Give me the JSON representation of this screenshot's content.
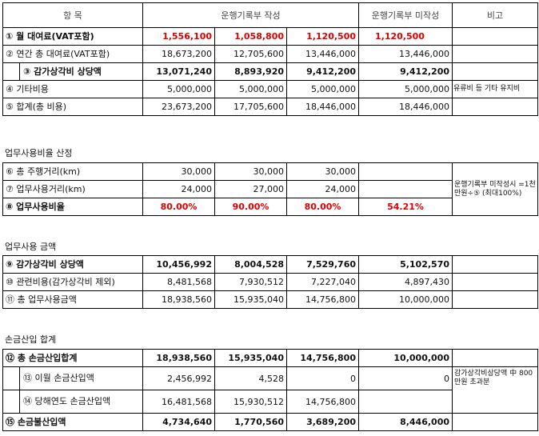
{
  "header": {
    "item": "항      목",
    "written": "운행기록부 작성",
    "not_written": "운행기록부 미작성",
    "remark": "비고"
  },
  "table1": [
    {
      "label": "① 월 대여료(VAT포함)",
      "vals": [
        "1,556,100",
        "1,058,800",
        "1,120,500",
        "1,120,500"
      ],
      "style": "red",
      "note": ""
    },
    {
      "label": "② 연간 총 대여료(VAT포함)",
      "vals": [
        "18,673,200",
        "12,705,600",
        "13,446,000",
        "13,446,000"
      ],
      "style": "",
      "note": ""
    },
    {
      "label": "③ 감가상각비 상당액",
      "vals": [
        "13,071,240",
        "8,893,920",
        "9,412,200",
        "9,412,200"
      ],
      "style": "bold",
      "note": ""
    },
    {
      "label": "④ 기타비용",
      "vals": [
        "5,000,000",
        "5,000,000",
        "5,000,000",
        "5,000,000"
      ],
      "style": "",
      "note": "유류비 등 기타 유지비"
    },
    {
      "label": "⑤ 합계(총 비용)",
      "vals": [
        "23,673,200",
        "17,705,600",
        "18,446,000",
        "18,446,000"
      ],
      "style": "",
      "note": ""
    }
  ],
  "section2_title": "업무사용비율 산정",
  "table2": [
    {
      "label": "⑥ 총 주행거리(km)",
      "vals": [
        "30,000",
        "30,000",
        "30,000",
        ""
      ]
    },
    {
      "label": "⑦ 업무사용거리(km)",
      "vals": [
        "24,000",
        "27,000",
        "24,000",
        ""
      ]
    },
    {
      "label": "⑧ 업무사용비율",
      "vals": [
        "80.00%",
        "90.00%",
        "80.00%",
        "54.21%"
      ]
    }
  ],
  "table2_note": "운행기록부 미작성시 =1천만원÷⑤ (최대100%)",
  "section3_title": "업무사용 금액",
  "table3": [
    {
      "label": "⑨ 감가상각비 상당액",
      "vals": [
        "10,456,992",
        "8,004,528",
        "7,529,760",
        "5,102,570"
      ],
      "style": "bold"
    },
    {
      "label": "⑩ 관련비용(감가상각비 제외)",
      "vals": [
        "8,481,568",
        "7,930,512",
        "7,227,040",
        "4,897,430"
      ],
      "style": ""
    },
    {
      "label": "⑪ 총 업무사용금액",
      "vals": [
        "18,938,560",
        "15,935,040",
        "14,756,800",
        "10,000,000"
      ],
      "style": ""
    }
  ],
  "section4_title": "손금산입 합계",
  "table4": [
    {
      "label": "⑫ 총 손금산입합계",
      "vals": [
        "18,938,560",
        "15,935,040",
        "14,756,800",
        "10,000,000"
      ],
      "style": "bold",
      "indent": false
    },
    {
      "label": "⑬ 이월 손금산입액",
      "vals": [
        "2,456,992",
        "4,528",
        "0",
        "0"
      ],
      "style": "",
      "indent": true
    },
    {
      "label": "⑭ 당해연도 손금산입액",
      "vals": [
        "16,481,568",
        "15,930,512",
        "14,756,800",
        ""
      ],
      "style": "",
      "indent": true
    },
    {
      "label": "⑮ 손금불산입액",
      "vals": [
        "4,734,640",
        "1,770,560",
        "3,689,200",
        "8,446,000"
      ],
      "style": "bold",
      "indent": false
    }
  ],
  "table4_note": "감가상각비상당액 中 800만원 초과분"
}
